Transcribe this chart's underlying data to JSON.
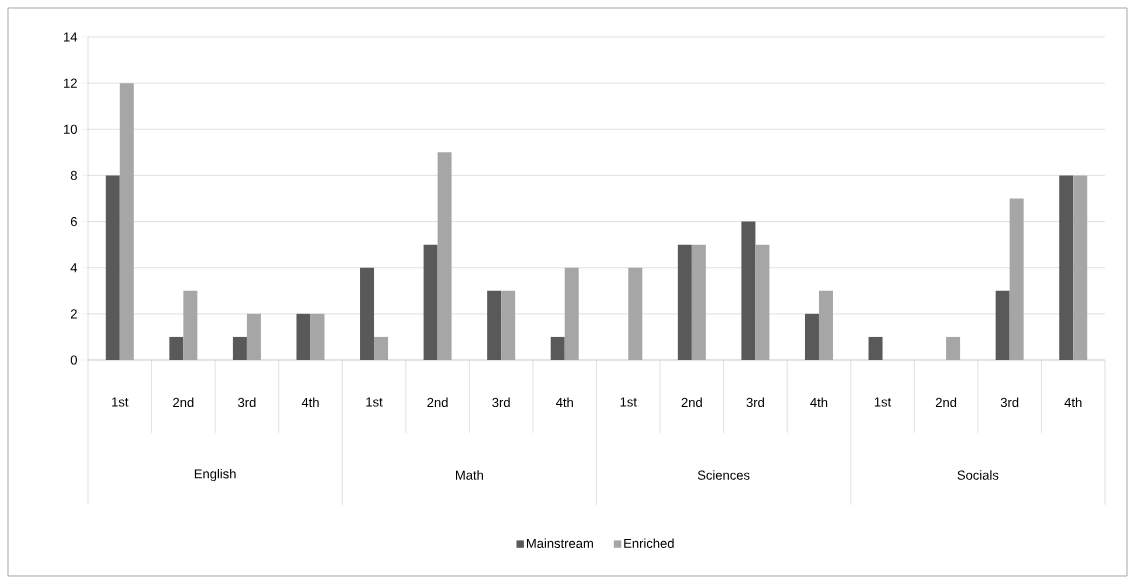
{
  "chart_data": {
    "type": "bar",
    "categories": [
      "1st",
      "2nd",
      "3rd",
      "4th",
      "1st",
      "2nd",
      "3rd",
      "4th",
      "1st",
      "2nd",
      "3rd",
      "4th",
      "1st",
      "2nd",
      "3rd",
      "4th"
    ],
    "annotations": [
      "English",
      "Math",
      "Sciences",
      "Socials"
    ],
    "series": [
      {
        "name": "Mainstream",
        "color": "#595959",
        "values": [
          8,
          1,
          1,
          2,
          4,
          5,
          3,
          1,
          0,
          5,
          6,
          2,
          1,
          0,
          3,
          8
        ]
      },
      {
        "name": "Enriched",
        "color": "#a6a6a6",
        "values": [
          12,
          3,
          2,
          2,
          1,
          9,
          3,
          4,
          4,
          5,
          5,
          3,
          0,
          1,
          7,
          8
        ]
      }
    ],
    "ylim": [
      0,
      14
    ],
    "yticks": [
      0,
      2,
      4,
      6,
      8,
      10,
      12,
      14
    ],
    "grid": "y",
    "legend": "bottom"
  }
}
